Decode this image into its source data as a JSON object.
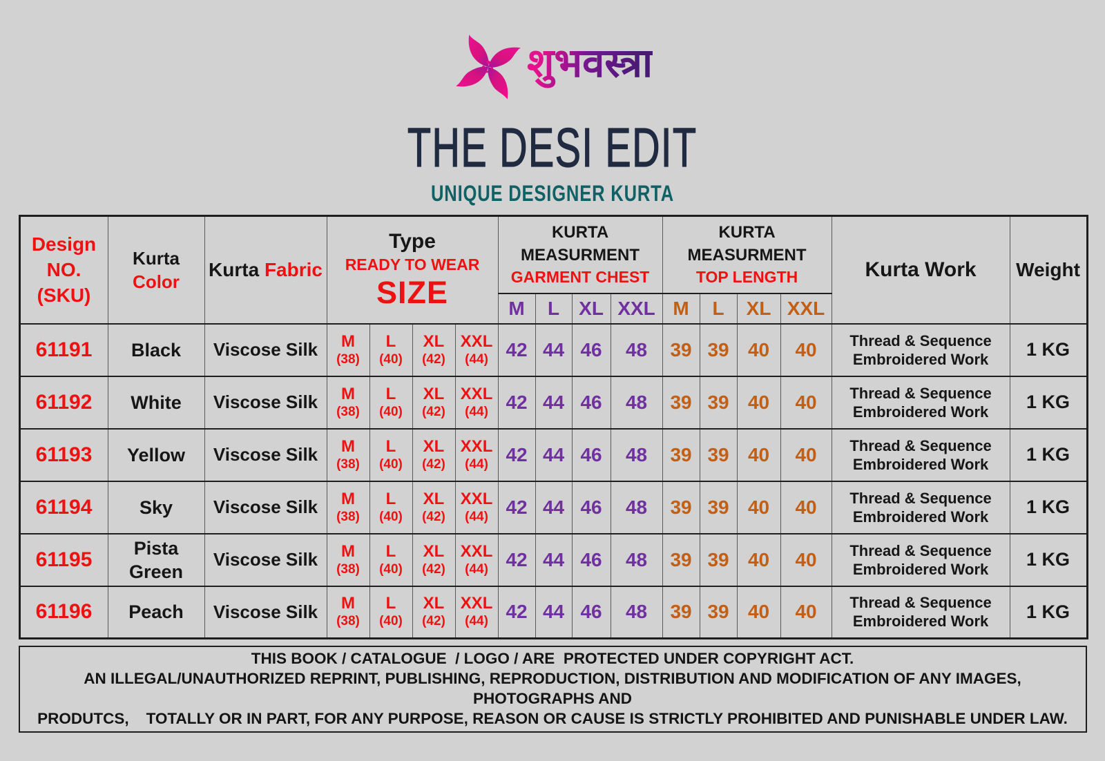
{
  "page": {
    "background": "#d2d2d2"
  },
  "logo": {
    "icon": "pinwheel-swirl-icon",
    "brand_text": "शुभवस्त्रा",
    "gradient_start": "#e8118d",
    "gradient_end": "#4b1a77"
  },
  "header": {
    "title": "THE DESI EDIT",
    "subtitle": "UNIQUE DESIGNER KURTA"
  },
  "table": {
    "header": {
      "design_no_lines": [
        "Design",
        "NO.",
        "(SKU)"
      ],
      "kurta_color": {
        "line1": "Kurta",
        "line2": "Color"
      },
      "kurta_fabric": {
        "black": "Kurta",
        "red": "Fabric"
      },
      "type": {
        "line1": "Type",
        "line2": "READY TO WEAR",
        "line3": "SIZE"
      },
      "chest_group": {
        "line1": "KURTA",
        "line2": "MEASURMENT",
        "line3": "GARMENT CHEST"
      },
      "length_group": {
        "line1": "KURTA",
        "line2": "MEASURMENT",
        "line3": "TOP LENGTH"
      },
      "work": "Kurta Work",
      "weight": "Weight"
    },
    "sizes": [
      "M",
      "L",
      "XL",
      "XXL"
    ],
    "size_cells": [
      {
        "label": "M",
        "value": "(38)"
      },
      {
        "label": "L",
        "value": "(40)"
      },
      {
        "label": "XL",
        "value": "(42)"
      },
      {
        "label": "XXL",
        "value": "(44)"
      }
    ],
    "rows": [
      {
        "sku": "61191",
        "color": "Black",
        "fabric": "Viscose Silk",
        "chest": [
          "42",
          "44",
          "46",
          "48"
        ],
        "top_length": [
          "39",
          "39",
          "40",
          "40"
        ],
        "work": "Thread & Sequence Embroidered Work",
        "weight": "1 KG"
      },
      {
        "sku": "61192",
        "color": "White",
        "fabric": "Viscose Silk",
        "chest": [
          "42",
          "44",
          "46",
          "48"
        ],
        "top_length": [
          "39",
          "39",
          "40",
          "40"
        ],
        "work": "Thread & Sequence Embroidered Work",
        "weight": "1 KG"
      },
      {
        "sku": "61193",
        "color": "Yellow",
        "fabric": "Viscose Silk",
        "chest": [
          "42",
          "44",
          "46",
          "48"
        ],
        "top_length": [
          "39",
          "39",
          "40",
          "40"
        ],
        "work": "Thread & Sequence Embroidered Work",
        "weight": "1 KG"
      },
      {
        "sku": "61194",
        "color": "Sky",
        "fabric": "Viscose Silk",
        "chest": [
          "42",
          "44",
          "46",
          "48"
        ],
        "top_length": [
          "39",
          "39",
          "40",
          "40"
        ],
        "work": "Thread & Sequence Embroidered Work",
        "weight": "1 KG"
      },
      {
        "sku": "61195",
        "color": "Pista Green",
        "fabric": "Viscose Silk",
        "chest": [
          "42",
          "44",
          "46",
          "48"
        ],
        "top_length": [
          "39",
          "39",
          "40",
          "40"
        ],
        "work": "Thread & Sequence Embroidered Work",
        "weight": "1 KG"
      },
      {
        "sku": "61196",
        "color": "Peach",
        "fabric": "Viscose Silk",
        "chest": [
          "42",
          "44",
          "46",
          "48"
        ],
        "top_length": [
          "39",
          "39",
          "40",
          "40"
        ],
        "work": "Thread & Sequence Embroidered Work",
        "weight": "1 KG"
      }
    ]
  },
  "footer": {
    "lines": [
      "THIS BOOK / CATALOGUE  / LOGO / ARE  PROTECTED UNDER COPYRIGHT ACT.",
      "AN ILLEGAL/UNAUTHORIZED REPRINT, PUBLISHING, REPRODUCTION, DISTRIBUTION AND MODIFICATION OF ANY IMAGES, PHOTOGRAPHS AND",
      "PRODUTCS,    TOTALLY OR IN PART, FOR ANY PURPOSE, REASON OR CAUSE IS STRICTLY PROHIBITED AND PUNISHABLE UNDER LAW."
    ]
  },
  "colors": {
    "red": "#ee1111",
    "purple": "#7030a0",
    "orange": "#c35f15",
    "title_navy": "#202a40",
    "subtitle_teal": "#0f6166",
    "text_black": "#161616",
    "border_dark": "#1e1e1e",
    "border_light": "#58585a"
  }
}
